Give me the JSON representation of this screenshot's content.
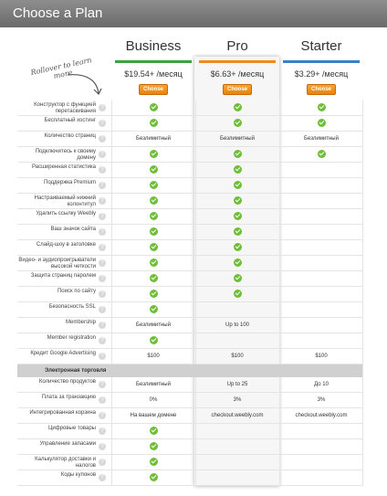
{
  "header": {
    "title": "Choose a Plan"
  },
  "rollover": {
    "text": "Rollover to learn more"
  },
  "colors": {
    "business": "#3ca33c",
    "pro": "#f1891d",
    "starter": "#3a7fc4",
    "check": "#6fbe3a"
  },
  "plans": [
    {
      "name": "Business",
      "price": "$19.54+ /месяц",
      "button": "Choose"
    },
    {
      "name": "Pro",
      "price": "$6.63+ /месяц",
      "button": "Choose"
    },
    {
      "name": "Starter",
      "price": "$3.29+ /месяц",
      "button": "Choose"
    }
  ],
  "rows_top": [
    {
      "label": "Конструктор с функцией перетаскивания",
      "values": [
        "check",
        "check",
        "check"
      ]
    },
    {
      "label": "Бесплатный хостинг",
      "values": [
        "check",
        "check",
        "check"
      ]
    },
    {
      "label": "Количество страниц",
      "values": [
        "Безлимитный",
        "Безлимитный",
        "Безлимитный"
      ]
    },
    {
      "label": "Подключитесь к своему домену",
      "values": [
        "check",
        "check",
        "check"
      ]
    },
    {
      "label": "Расширенная статистика",
      "values": [
        "check",
        "check",
        ""
      ]
    },
    {
      "label": "Поддержка Premium",
      "values": [
        "check",
        "check",
        ""
      ]
    },
    {
      "label": "Настраиваемый нижний колонтитул",
      "values": [
        "check",
        "check",
        ""
      ]
    },
    {
      "label": "Удалить ссылку Weebly",
      "values": [
        "check",
        "check",
        ""
      ]
    },
    {
      "label": "Ваш значок сайта",
      "values": [
        "check",
        "check",
        ""
      ]
    },
    {
      "label": "Слайд-шоу в заголовке",
      "values": [
        "check",
        "check",
        ""
      ]
    },
    {
      "label": "Видео- и аудиопроигрыватели высокой четкости",
      "values": [
        "check",
        "check",
        ""
      ]
    },
    {
      "label": "Защита страниц паролем",
      "values": [
        "check",
        "check",
        ""
      ]
    },
    {
      "label": "Поиск по сайту",
      "values": [
        "check",
        "check",
        ""
      ]
    },
    {
      "label": "Безопасность SSL",
      "values": [
        "check",
        "",
        ""
      ]
    },
    {
      "label": "Membership",
      "values": [
        "Безлимитный",
        "Up to 100",
        ""
      ]
    },
    {
      "label": "Member registration",
      "values": [
        "check",
        "",
        ""
      ]
    },
    {
      "label": "Кредит Google Advertising",
      "values": [
        "$100",
        "$100",
        "$100"
      ]
    }
  ],
  "section": {
    "label": "Электронная торговля"
  },
  "rows_bottom": [
    {
      "label": "Количество продуктов",
      "values": [
        "Безлимитный",
        "Up to 25",
        "До 10"
      ]
    },
    {
      "label": "Плата за транзакцию",
      "values": [
        "0%",
        "3%",
        "3%"
      ]
    },
    {
      "label": "Интегрированная корзина",
      "values": [
        "На вашем домене",
        "checkout.weebly.com",
        "checkout.weebly.com"
      ]
    },
    {
      "label": "Цифровые товары",
      "values": [
        "check",
        "",
        ""
      ]
    },
    {
      "label": "Управление запасами",
      "values": [
        "check",
        "",
        ""
      ]
    },
    {
      "label": "Калькулятор доставки и налогов",
      "values": [
        "check",
        "",
        ""
      ]
    },
    {
      "label": "Коды купонов",
      "values": [
        "check",
        "",
        ""
      ]
    }
  ]
}
